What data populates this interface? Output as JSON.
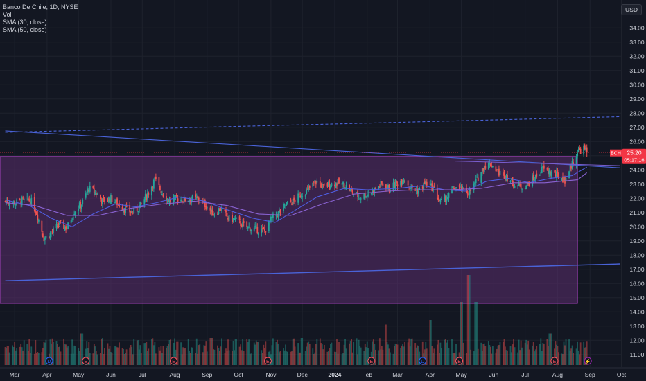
{
  "header": {
    "title": "Banco De Chile, 1D, NYSE",
    "vol_label": "Vol",
    "sma30_label": "SMA (30, close)",
    "sma50_label": "SMA (50, close)",
    "currency": "USD"
  },
  "colors": {
    "background": "#131722",
    "up": "#26a69a",
    "down": "#ef5350",
    "box_fill": "#5b2d6e",
    "box_border": "#a040b8",
    "trendline": "#4a63d8",
    "sma30": "#4f5de0",
    "sma50": "#8a63d2",
    "price_tag": "#f23645",
    "axis_text": "#d1d4dc"
  },
  "chart_data": {
    "type": "candlestick",
    "symbol": "BCH",
    "last_price": "25.20",
    "countdown": "05:17:16",
    "y_axis": {
      "ticks": [
        "34.00",
        "33.00",
        "32.00",
        "31.00",
        "30.00",
        "29.00",
        "28.00",
        "27.00",
        "26.00",
        "25.00",
        "24.00",
        "23.00",
        "22.00",
        "21.00",
        "20.00",
        "19.00",
        "18.00",
        "17.00",
        "16.00",
        "15.00",
        "14.00",
        "13.00",
        "12.00",
        "11.00"
      ],
      "ylim": [
        10.6,
        34.6
      ]
    },
    "x_axis": {
      "ticks": [
        "Mar",
        "Apr",
        "May",
        "Jun",
        "Jul",
        "Aug",
        "Sep",
        "Oct",
        "Nov",
        "Dec",
        "2024",
        "Feb",
        "Mar",
        "Apr",
        "May",
        "Jun",
        "Jul",
        "Aug",
        "Sep",
        "Oct"
      ]
    },
    "range_box": {
      "start": "2023-02-20",
      "end": "2024-08-20",
      "top": 24.95,
      "bottom": 14.6
    },
    "lines": [
      {
        "name": "Descending trendline",
        "start": [
          "2023-02-20",
          26.75
        ],
        "end": [
          "2024-09-30",
          24.15
        ]
      },
      {
        "name": "Ascending trendline",
        "start": [
          "2023-02-20",
          16.2
        ],
        "end": [
          "2024-09-30",
          17.38
        ]
      },
      {
        "name": "Projection (dashed)",
        "start": [
          "2023-02-20",
          26.65
        ],
        "end": [
          "2024-09-30",
          27.75
        ]
      },
      {
        "name": "Box mid line",
        "start": [
          "2024-04-25",
          24.62
        ],
        "end": [
          "2024-09-30",
          24.3
        ]
      }
    ],
    "closes": [
      [
        "2023-02-20",
        21.8
      ],
      [
        "2023-03-01",
        21.7
      ],
      [
        "2023-03-08",
        21.8
      ],
      [
        "2023-03-16",
        21.9
      ],
      [
        "2023-03-22",
        21.0
      ],
      [
        "2023-03-29",
        19.2
      ],
      [
        "2023-04-06",
        19.6
      ],
      [
        "2023-04-13",
        20.2
      ],
      [
        "2023-04-20",
        19.9
      ],
      [
        "2023-04-27",
        21.1
      ],
      [
        "2023-05-04",
        21.6
      ],
      [
        "2023-05-11",
        22.7
      ],
      [
        "2023-05-17",
        22.4
      ],
      [
        "2023-05-24",
        21.8
      ],
      [
        "2023-06-01",
        22.0
      ],
      [
        "2023-06-08",
        21.6
      ],
      [
        "2023-06-15",
        21.2
      ],
      [
        "2023-06-22",
        21.0
      ],
      [
        "2023-06-29",
        21.5
      ],
      [
        "2023-07-06",
        22.3
      ],
      [
        "2023-07-13",
        23.3
      ],
      [
        "2023-07-20",
        22.4
      ],
      [
        "2023-07-27",
        21.8
      ],
      [
        "2023-08-03",
        22.0
      ],
      [
        "2023-08-10",
        21.9
      ],
      [
        "2023-08-17",
        22.0
      ],
      [
        "2023-08-24",
        21.9
      ],
      [
        "2023-08-31",
        21.5
      ],
      [
        "2023-09-07",
        20.9
      ],
      [
        "2023-09-14",
        21.3
      ],
      [
        "2023-09-21",
        20.6
      ],
      [
        "2023-09-28",
        20.5
      ],
      [
        "2023-10-05",
        20.1
      ],
      [
        "2023-10-12",
        19.9
      ],
      [
        "2023-10-19",
        19.8
      ],
      [
        "2023-10-26",
        19.7
      ],
      [
        "2023-11-02",
        20.6
      ],
      [
        "2023-11-09",
        21.0
      ],
      [
        "2023-11-16",
        21.6
      ],
      [
        "2023-11-23",
        21.8
      ],
      [
        "2023-11-30",
        22.3
      ],
      [
        "2023-12-07",
        22.6
      ],
      [
        "2023-12-14",
        23.2
      ],
      [
        "2023-12-21",
        22.8
      ],
      [
        "2023-12-28",
        23.0
      ],
      [
        "2024-01-04",
        23.1
      ],
      [
        "2024-01-11",
        22.9
      ],
      [
        "2024-01-18",
        22.4
      ],
      [
        "2024-01-25",
        22.1
      ],
      [
        "2024-02-01",
        22.3
      ],
      [
        "2024-02-08",
        22.6
      ],
      [
        "2024-02-15",
        23.0
      ],
      [
        "2024-02-22",
        22.7
      ],
      [
        "2024-02-29",
        23.0
      ],
      [
        "2024-03-07",
        23.4
      ],
      [
        "2024-03-14",
        22.7
      ],
      [
        "2024-03-21",
        22.5
      ],
      [
        "2024-03-28",
        23.1
      ],
      [
        "2024-04-04",
        22.7
      ],
      [
        "2024-04-11",
        21.7
      ],
      [
        "2024-04-18",
        22.1
      ],
      [
        "2024-04-25",
        22.8
      ],
      [
        "2024-05-02",
        22.6
      ],
      [
        "2024-05-09",
        22.4
      ],
      [
        "2024-05-16",
        23.3
      ],
      [
        "2024-05-23",
        24.3
      ],
      [
        "2024-05-30",
        24.4
      ],
      [
        "2024-06-06",
        23.8
      ],
      [
        "2024-06-13",
        23.6
      ],
      [
        "2024-06-20",
        23.0
      ],
      [
        "2024-06-27",
        22.8
      ],
      [
        "2024-07-04",
        23.0
      ],
      [
        "2024-07-11",
        23.5
      ],
      [
        "2024-07-18",
        24.1
      ],
      [
        "2024-07-25",
        23.8
      ],
      [
        "2024-08-01",
        23.6
      ],
      [
        "2024-08-08",
        23.3
      ],
      [
        "2024-08-12",
        24.0
      ],
      [
        "2024-08-16",
        24.6
      ],
      [
        "2024-08-20",
        25.3
      ],
      [
        "2024-08-26",
        25.5
      ],
      [
        "2024-08-29",
        25.2
      ]
    ],
    "sma30": [
      [
        "2023-02-20",
        21.9
      ],
      [
        "2023-03-15",
        21.5
      ],
      [
        "2023-04-05",
        20.6
      ],
      [
        "2023-04-25",
        20.0
      ],
      [
        "2023-05-15",
        20.9
      ],
      [
        "2023-06-05",
        21.6
      ],
      [
        "2023-06-25",
        21.4
      ],
      [
        "2023-07-15",
        21.7
      ],
      [
        "2023-08-05",
        22.1
      ],
      [
        "2023-08-30",
        21.8
      ],
      [
        "2023-09-20",
        21.2
      ],
      [
        "2023-10-15",
        20.6
      ],
      [
        "2023-11-05",
        20.3
      ],
      [
        "2023-11-25",
        21.2
      ],
      [
        "2023-12-15",
        22.1
      ],
      [
        "2024-01-10",
        22.7
      ],
      [
        "2024-02-01",
        22.6
      ],
      [
        "2024-03-01",
        22.7
      ],
      [
        "2024-03-25",
        22.9
      ],
      [
        "2024-04-15",
        22.6
      ],
      [
        "2024-05-05",
        22.5
      ],
      [
        "2024-05-25",
        23.2
      ],
      [
        "2024-06-15",
        23.4
      ],
      [
        "2024-07-05",
        23.1
      ],
      [
        "2024-07-25",
        23.4
      ],
      [
        "2024-08-15",
        23.6
      ],
      [
        "2024-08-29",
        24.2
      ]
    ],
    "sma50": [
      [
        "2023-02-20",
        21.7
      ],
      [
        "2023-03-20",
        21.5
      ],
      [
        "2023-04-20",
        20.8
      ],
      [
        "2023-05-20",
        20.8
      ],
      [
        "2023-06-20",
        21.3
      ],
      [
        "2023-07-20",
        21.6
      ],
      [
        "2023-08-20",
        21.8
      ],
      [
        "2023-09-20",
        21.5
      ],
      [
        "2023-10-20",
        20.9
      ],
      [
        "2023-11-20",
        20.8
      ],
      [
        "2023-12-20",
        21.6
      ],
      [
        "2024-01-20",
        22.3
      ],
      [
        "2024-02-20",
        22.5
      ],
      [
        "2024-03-20",
        22.6
      ],
      [
        "2024-04-20",
        22.6
      ],
      [
        "2024-05-20",
        22.7
      ],
      [
        "2024-06-20",
        23.1
      ],
      [
        "2024-07-20",
        23.1
      ],
      [
        "2024-08-20",
        23.3
      ],
      [
        "2024-08-29",
        23.8
      ]
    ],
    "volume_spikes": [
      [
        "2023-05-04",
        0.35
      ],
      [
        "2023-09-05",
        0.3
      ],
      [
        "2023-12-01",
        0.3
      ],
      [
        "2024-02-18",
        0.45
      ],
      [
        "2024-04-01",
        0.5
      ],
      [
        "2024-05-01",
        0.7
      ],
      [
        "2024-05-08",
        1.0
      ],
      [
        "2024-05-15",
        0.7
      ],
      [
        "2024-07-25",
        0.35
      ]
    ],
    "event_markers": [
      {
        "date": "2023-04-03",
        "label": "D"
      },
      {
        "date": "2023-05-08",
        "label": "E"
      },
      {
        "date": "2023-07-31",
        "label": "E"
      },
      {
        "date": "2023-10-29",
        "label": "E"
      },
      {
        "date": "2024-02-05",
        "label": "E"
      },
      {
        "date": "2024-03-25",
        "label": "D"
      },
      {
        "date": "2024-04-29",
        "label": "E"
      },
      {
        "date": "2024-07-29",
        "label": "E"
      },
      {
        "date": "2024-08-30",
        "label": "⚡"
      }
    ]
  }
}
